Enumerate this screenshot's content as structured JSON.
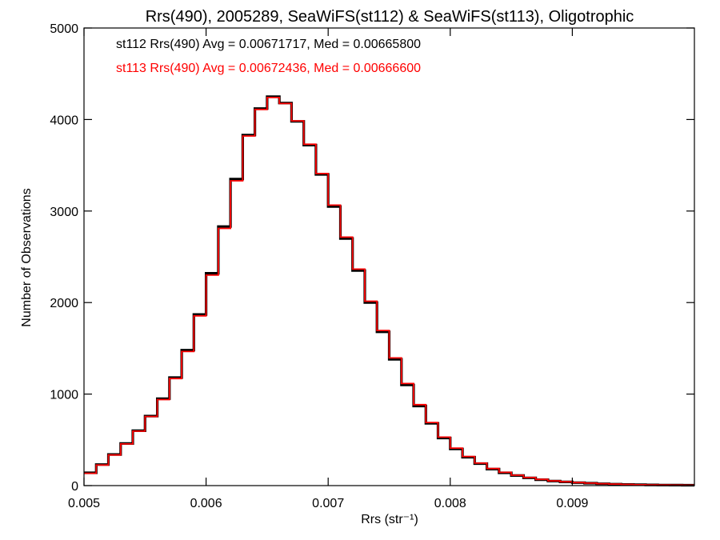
{
  "chart_data": {
    "type": "histogram-step",
    "title": "Rrs(490), 2005289, SeaWiFS(st112) & SeaWiFS(st113), Oligotrophic",
    "xlabel": "Rrs (str⁻¹)",
    "ylabel": "Number of Observations",
    "xlim": [
      0.005,
      0.01
    ],
    "ylim": [
      0,
      5000
    ],
    "xticks": [
      0.005,
      0.006,
      0.007,
      0.008,
      0.009
    ],
    "xtick_labels": [
      "0.005",
      "0.006",
      "0.007",
      "0.008",
      "0.009"
    ],
    "yticks": [
      0,
      1000,
      2000,
      3000,
      4000,
      5000
    ],
    "ytick_labels": [
      "0",
      "1000",
      "2000",
      "3000",
      "4000",
      "5000"
    ],
    "grid": false,
    "annotations": [
      {
        "text": "st112 Rrs(490) Avg = 0.00671717, Med = 0.00665800",
        "color": "#000000"
      },
      {
        "text": "st113 Rrs(490) Avg = 0.00672436, Med = 0.00666600",
        "color": "#ff0000"
      }
    ],
    "series": [
      {
        "color": "#000000",
        "x": [
          0.005,
          0.0051,
          0.0052,
          0.0053,
          0.0054,
          0.0055,
          0.0056,
          0.0057,
          0.0058,
          0.0059,
          0.006,
          0.0061,
          0.0062,
          0.0063,
          0.0064,
          0.0065,
          0.0066,
          0.0067,
          0.0068,
          0.0069,
          0.007,
          0.0071,
          0.0072,
          0.0073,
          0.0074,
          0.0075,
          0.0076,
          0.0077,
          0.0078,
          0.0079,
          0.008,
          0.0081,
          0.0082,
          0.0083,
          0.0084,
          0.0085,
          0.0086,
          0.0087,
          0.0088,
          0.0089,
          0.009,
          0.0091,
          0.0092,
          0.0093,
          0.0094,
          0.0095,
          0.0096,
          0.0097,
          0.0098,
          0.0099,
          0.01
        ],
        "y": [
          140,
          230,
          340,
          460,
          600,
          760,
          950,
          1180,
          1480,
          1870,
          2320,
          2830,
          3350,
          3830,
          4120,
          4250,
          4180,
          3980,
          3720,
          3400,
          3050,
          2700,
          2350,
          2000,
          1680,
          1380,
          1100,
          870,
          680,
          520,
          400,
          310,
          240,
          180,
          140,
          110,
          85,
          65,
          50,
          40,
          32,
          26,
          20,
          16,
          12,
          10,
          8,
          6,
          5,
          4,
          3
        ]
      },
      {
        "color": "#ff0000",
        "x": [
          0.005,
          0.0051,
          0.0052,
          0.0053,
          0.0054,
          0.0055,
          0.0056,
          0.0057,
          0.0058,
          0.0059,
          0.006,
          0.0061,
          0.0062,
          0.0063,
          0.0064,
          0.0065,
          0.0066,
          0.0067,
          0.0068,
          0.0069,
          0.007,
          0.0071,
          0.0072,
          0.0073,
          0.0074,
          0.0075,
          0.0076,
          0.0077,
          0.0078,
          0.0079,
          0.008,
          0.0081,
          0.0082,
          0.0083,
          0.0084,
          0.0085,
          0.0086,
          0.0087,
          0.0088,
          0.0089,
          0.009,
          0.0091,
          0.0092,
          0.0093,
          0.0094,
          0.0095,
          0.0096,
          0.0097,
          0.0098,
          0.0099,
          0.01
        ],
        "y": [
          135,
          225,
          335,
          455,
          595,
          755,
          940,
          1170,
          1465,
          1855,
          2300,
          2810,
          3330,
          3820,
          4110,
          4240,
          4175,
          3985,
          3730,
          3410,
          3065,
          2715,
          2365,
          2015,
          1695,
          1395,
          1115,
          885,
          690,
          530,
          410,
          318,
          246,
          186,
          145,
          114,
          88,
          68,
          52,
          42,
          33,
          27,
          21,
          17,
          13,
          10,
          8,
          6,
          5,
          4,
          3
        ]
      }
    ]
  }
}
